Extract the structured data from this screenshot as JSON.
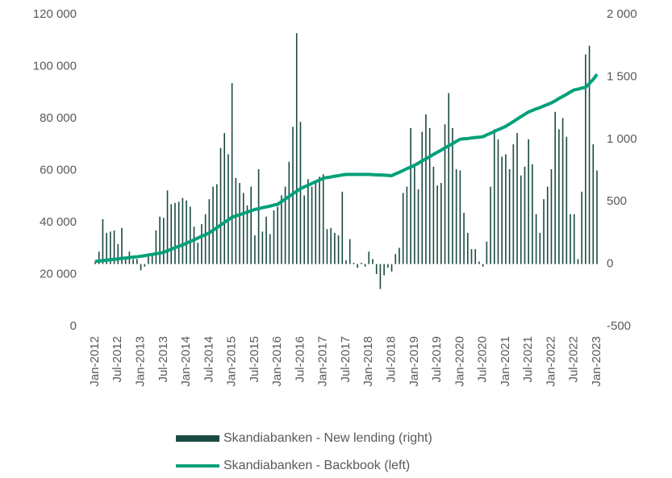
{
  "chart_data": {
    "type": "combo",
    "categories": [
      "Jan-2012",
      null,
      null,
      null,
      null,
      null,
      "Jul-2012",
      null,
      null,
      null,
      null,
      null,
      "Jan-2013",
      null,
      null,
      null,
      null,
      null,
      "Jul-2013",
      null,
      null,
      null,
      null,
      null,
      "Jan-2014",
      null,
      null,
      null,
      null,
      null,
      "Jul-2014",
      null,
      null,
      null,
      null,
      null,
      "Jan-2015",
      null,
      null,
      null,
      null,
      null,
      "Jul-2015",
      null,
      null,
      null,
      null,
      null,
      "Jan-2016",
      null,
      null,
      null,
      null,
      null,
      "Jul-2016",
      null,
      null,
      null,
      null,
      null,
      "Jan-2017",
      null,
      null,
      null,
      null,
      null,
      "Jul-2017",
      null,
      null,
      null,
      null,
      null,
      "Jan-2018",
      null,
      null,
      null,
      null,
      null,
      "Jul-2018",
      null,
      null,
      null,
      null,
      null,
      "Jan-2019",
      null,
      null,
      null,
      null,
      null,
      "Jul-2019",
      null,
      null,
      null,
      null,
      null,
      "Jan-2020",
      null,
      null,
      null,
      null,
      null,
      "Jul-2020",
      null,
      null,
      null,
      null,
      null,
      "Jan-2021",
      null,
      null,
      null,
      null,
      null,
      "Jul-2021",
      null,
      null,
      null,
      null,
      null,
      "Jan-2022",
      null,
      null,
      null,
      null,
      null,
      "Jul-2022",
      null,
      null,
      null,
      null,
      null,
      "Jan-2023"
    ],
    "series": [
      {
        "name": "Skandiabanken - New lending (right)",
        "type": "bar",
        "axis": "y2",
        "color": "#1b4a42",
        "values": [
          20,
          100,
          360,
          250,
          260,
          270,
          160,
          290,
          40,
          100,
          40,
          40,
          -50,
          -20,
          60,
          80,
          270,
          380,
          370,
          590,
          480,
          490,
          500,
          530,
          510,
          460,
          300,
          170,
          320,
          400,
          520,
          620,
          640,
          930,
          1050,
          880,
          1450,
          690,
          650,
          570,
          470,
          620,
          230,
          760,
          260,
          380,
          240,
          430,
          460,
          550,
          620,
          820,
          1100,
          1850,
          1140,
          550,
          680,
          620,
          670,
          700,
          720,
          280,
          290,
          250,
          230,
          580,
          30,
          200,
          10,
          -30,
          10,
          -20,
          100,
          40,
          -80,
          -200,
          -90,
          -30,
          -60,
          80,
          130,
          570,
          620,
          1090,
          800,
          600,
          1060,
          1200,
          1090,
          780,
          630,
          650,
          1120,
          1370,
          1090,
          760,
          750,
          410,
          250,
          120,
          120,
          20,
          -20,
          180,
          620,
          1080,
          1000,
          860,
          880,
          760,
          960,
          1050,
          710,
          780,
          1000,
          800,
          400,
          250,
          520,
          620,
          760,
          1220,
          1080,
          1170,
          1020,
          400,
          400,
          40,
          580,
          1680,
          1750,
          960,
          750
        ]
      },
      {
        "name": "Skandiabanken - Backbook (left)",
        "type": "line",
        "color": "#00a07a",
        "values": [
          25000,
          25200,
          25300,
          25500,
          25700,
          25800,
          26000,
          26200,
          26300,
          26500,
          26700,
          26800,
          27000,
          27200,
          27500,
          27700,
          28000,
          28200,
          28500,
          29100,
          29700,
          30300,
          30800,
          31400,
          32000,
          32700,
          33300,
          34000,
          34700,
          35300,
          36000,
          37000,
          38000,
          39000,
          40000,
          41000,
          42000,
          42500,
          43000,
          43500,
          44000,
          44500,
          45000,
          45300,
          45700,
          46000,
          46300,
          46700,
          47000,
          48000,
          49000,
          50000,
          51000,
          52000,
          53000,
          53700,
          54300,
          55000,
          55700,
          56300,
          57000,
          57300,
          57500,
          57800,
          58000,
          58300,
          58500,
          58500,
          58500,
          58500,
          58500,
          58500,
          58500,
          58400,
          58300,
          58300,
          58200,
          58100,
          58000,
          58700,
          59300,
          60000,
          60700,
          61300,
          62000,
          62800,
          63700,
          64500,
          65300,
          66200,
          67000,
          67800,
          68700,
          69500,
          70300,
          71200,
          72000,
          72200,
          72300,
          72500,
          72700,
          72800,
          73000,
          73700,
          74300,
          75000,
          75700,
          76300,
          77000,
          77900,
          78800,
          79800,
          80700,
          81600,
          82500,
          83100,
          83700,
          84200,
          84800,
          85400,
          86000,
          86800,
          87700,
          88500,
          89300,
          90200,
          91000,
          91300,
          91700,
          92000,
          93500,
          95000,
          97000
        ]
      }
    ],
    "ylim": [
      0,
      120000
    ],
    "yticks": [
      0,
      {
        "value": 20000,
        "label": "20 000"
      },
      {
        "value": 40000,
        "label": "40 000"
      },
      {
        "value": 60000,
        "label": "60 000"
      },
      {
        "value": 80000,
        "label": "80 000"
      },
      {
        "value": 100000,
        "label": "100 000"
      },
      {
        "value": 120000,
        "label": "120 000"
      }
    ],
    "y2lim": [
      -500,
      2000
    ],
    "y2ticks": [
      -500,
      0,
      500,
      {
        "value": 1000,
        "label": "1 000"
      },
      {
        "value": 1500,
        "label": "1 500"
      },
      {
        "value": 2000,
        "label": "2 000"
      }
    ],
    "grid": false
  }
}
